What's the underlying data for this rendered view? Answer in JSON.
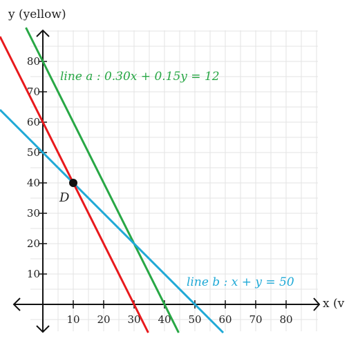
{
  "chart_data": {
    "type": "line",
    "xlabel": "x (v",
    "ylabel": "y (yellow)",
    "xlim": [
      -4,
      90
    ],
    "ylim": [
      -10,
      90
    ],
    "grid": true,
    "x_ticks": [
      10,
      20,
      30,
      40,
      50,
      60,
      70,
      80
    ],
    "y_ticks": [
      10,
      20,
      30,
      40,
      50,
      60,
      70,
      80
    ],
    "x_tick_labels": [
      "10",
      "20",
      "30",
      "40",
      "50",
      "60",
      "70",
      "80"
    ],
    "y_tick_labels": [
      "10",
      "20",
      "30",
      "40",
      "50",
      "60",
      "70",
      "80"
    ],
    "series": [
      {
        "name": "line a : 0.30x + 0.15y = 12",
        "color": "#28a745",
        "equation": {
          "a": 0.3,
          "b": 0.15,
          "c": 12
        },
        "x": [
          0,
          40
        ],
        "y": [
          80,
          0
        ]
      },
      {
        "name": "line b : x + y = 50",
        "color": "#1fa9d6",
        "equation": {
          "a": 1,
          "b": 1,
          "c": 50
        },
        "x": [
          0,
          50
        ],
        "y": [
          50,
          0
        ]
      },
      {
        "name": "",
        "color": "#e8191c",
        "x": [
          0,
          30
        ],
        "y": [
          60,
          0
        ]
      }
    ],
    "points": [
      {
        "label": "D",
        "x": 10,
        "y": 40
      }
    ],
    "annotations": {
      "line_a": "line a : 0.30x + 0.15y = 12",
      "line_b": "line b : x + y = 50"
    }
  }
}
